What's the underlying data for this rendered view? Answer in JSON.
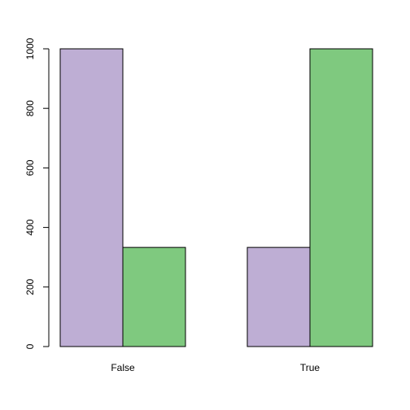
{
  "chart_data": {
    "type": "bar",
    "categories": [
      "False",
      "True"
    ],
    "series": [
      {
        "color": "#beaed4",
        "values": [
          1000,
          333
        ]
      },
      {
        "color": "#7fc97f",
        "values": [
          333,
          1000
        ]
      }
    ],
    "ylim": [
      0,
      1000
    ],
    "yticks": [
      0,
      200,
      400,
      600,
      800,
      1000
    ]
  }
}
